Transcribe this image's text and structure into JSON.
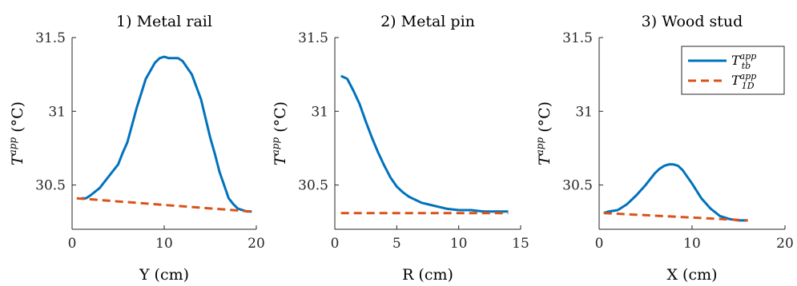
{
  "chart_data": [
    {
      "type": "line",
      "title": "1) Metal rail",
      "xlabel": "Y (cm)",
      "ylabel": "T^app (°C)",
      "xlim": [
        0,
        20
      ],
      "ylim": [
        30.2,
        31.5
      ],
      "xticks": [
        0,
        10,
        20
      ],
      "yticks": [
        30.5,
        31,
        31.5
      ],
      "xtick_labels": [
        "0",
        "10",
        "20"
      ],
      "ytick_labels": [
        "30.5",
        "31",
        "31.5"
      ],
      "series": [
        {
          "name": "T_tb^app",
          "color": "#0072BD",
          "style": "solid",
          "x": [
            1,
            1.5,
            2,
            3,
            4,
            5,
            5.5,
            6,
            7,
            8,
            9,
            9.5,
            10,
            10.5,
            11,
            11.5,
            12,
            13,
            14,
            15,
            15.5,
            16,
            17,
            17.5,
            18,
            19,
            19.5
          ],
          "y": [
            30.41,
            30.41,
            30.43,
            30.48,
            30.56,
            30.64,
            30.72,
            30.79,
            31.02,
            31.22,
            31.33,
            31.36,
            31.37,
            31.36,
            31.36,
            31.36,
            31.34,
            31.25,
            31.08,
            30.82,
            30.71,
            30.59,
            30.41,
            30.37,
            30.34,
            30.32,
            30.32
          ]
        },
        {
          "name": "T_1D^app",
          "color": "#D95319",
          "style": "dashed",
          "x": [
            0.5,
            19.5
          ],
          "y": [
            30.41,
            30.32
          ]
        }
      ]
    },
    {
      "type": "line",
      "title": "2) Metal pin",
      "xlabel": "R (cm)",
      "ylabel": "T^app (°C)",
      "xlim": [
        0,
        15
      ],
      "ylim": [
        30.2,
        31.5
      ],
      "xticks": [
        0,
        5,
        10,
        15
      ],
      "yticks": [
        30.5,
        31,
        31.5
      ],
      "xtick_labels": [
        "0",
        "5",
        "10",
        "15"
      ],
      "ytick_labels": [
        "30.5",
        "31",
        "31.5"
      ],
      "series": [
        {
          "name": "T_tb^app",
          "color": "#0072BD",
          "style": "solid",
          "x": [
            0.5,
            1,
            1.5,
            2,
            2.5,
            3,
            3.5,
            4,
            4.5,
            5,
            5.5,
            6,
            7,
            8,
            9,
            10,
            11,
            12,
            13,
            14
          ],
          "y": [
            31.24,
            31.22,
            31.14,
            31.05,
            30.93,
            30.82,
            30.72,
            30.63,
            30.55,
            30.49,
            30.45,
            30.42,
            30.38,
            30.36,
            30.34,
            30.33,
            30.33,
            30.32,
            30.32,
            30.32
          ]
        },
        {
          "name": "T_1D^app",
          "color": "#D95319",
          "style": "dashed",
          "x": [
            0.5,
            14
          ],
          "y": [
            30.31,
            30.31
          ]
        }
      ]
    },
    {
      "type": "line",
      "title": "3) Wood stud",
      "xlabel": "X (cm)",
      "ylabel": "T^app (°C)",
      "xlim": [
        0,
        20
      ],
      "ylim": [
        30.2,
        31.5
      ],
      "xticks": [
        0,
        10,
        20
      ],
      "yticks": [
        30.5,
        31,
        31.5
      ],
      "xtick_labels": [
        "0",
        "10",
        "20"
      ],
      "ytick_labels": [
        "30.5",
        "31",
        "31.5"
      ],
      "legend": {
        "placement": "top-right",
        "entries": [
          "T_tb^app",
          "T_1D^app"
        ]
      },
      "series": [
        {
          "name": "T_tb^app",
          "color": "#0072BD",
          "style": "solid",
          "x": [
            0.5,
            1,
            2,
            3,
            4,
            5,
            6,
            6.5,
            7,
            7.5,
            8,
            8.5,
            9,
            10,
            11,
            12,
            13,
            14,
            15,
            15.5,
            16
          ],
          "y": [
            30.31,
            30.32,
            30.33,
            30.37,
            30.43,
            30.5,
            30.58,
            30.61,
            30.63,
            30.64,
            30.64,
            30.63,
            30.6,
            30.51,
            30.41,
            30.34,
            30.29,
            30.27,
            30.26,
            30.26,
            30.26
          ]
        },
        {
          "name": "T_1D^app",
          "color": "#D95319",
          "style": "dashed",
          "x": [
            0.5,
            16
          ],
          "y": [
            30.31,
            30.26
          ]
        }
      ]
    }
  ]
}
